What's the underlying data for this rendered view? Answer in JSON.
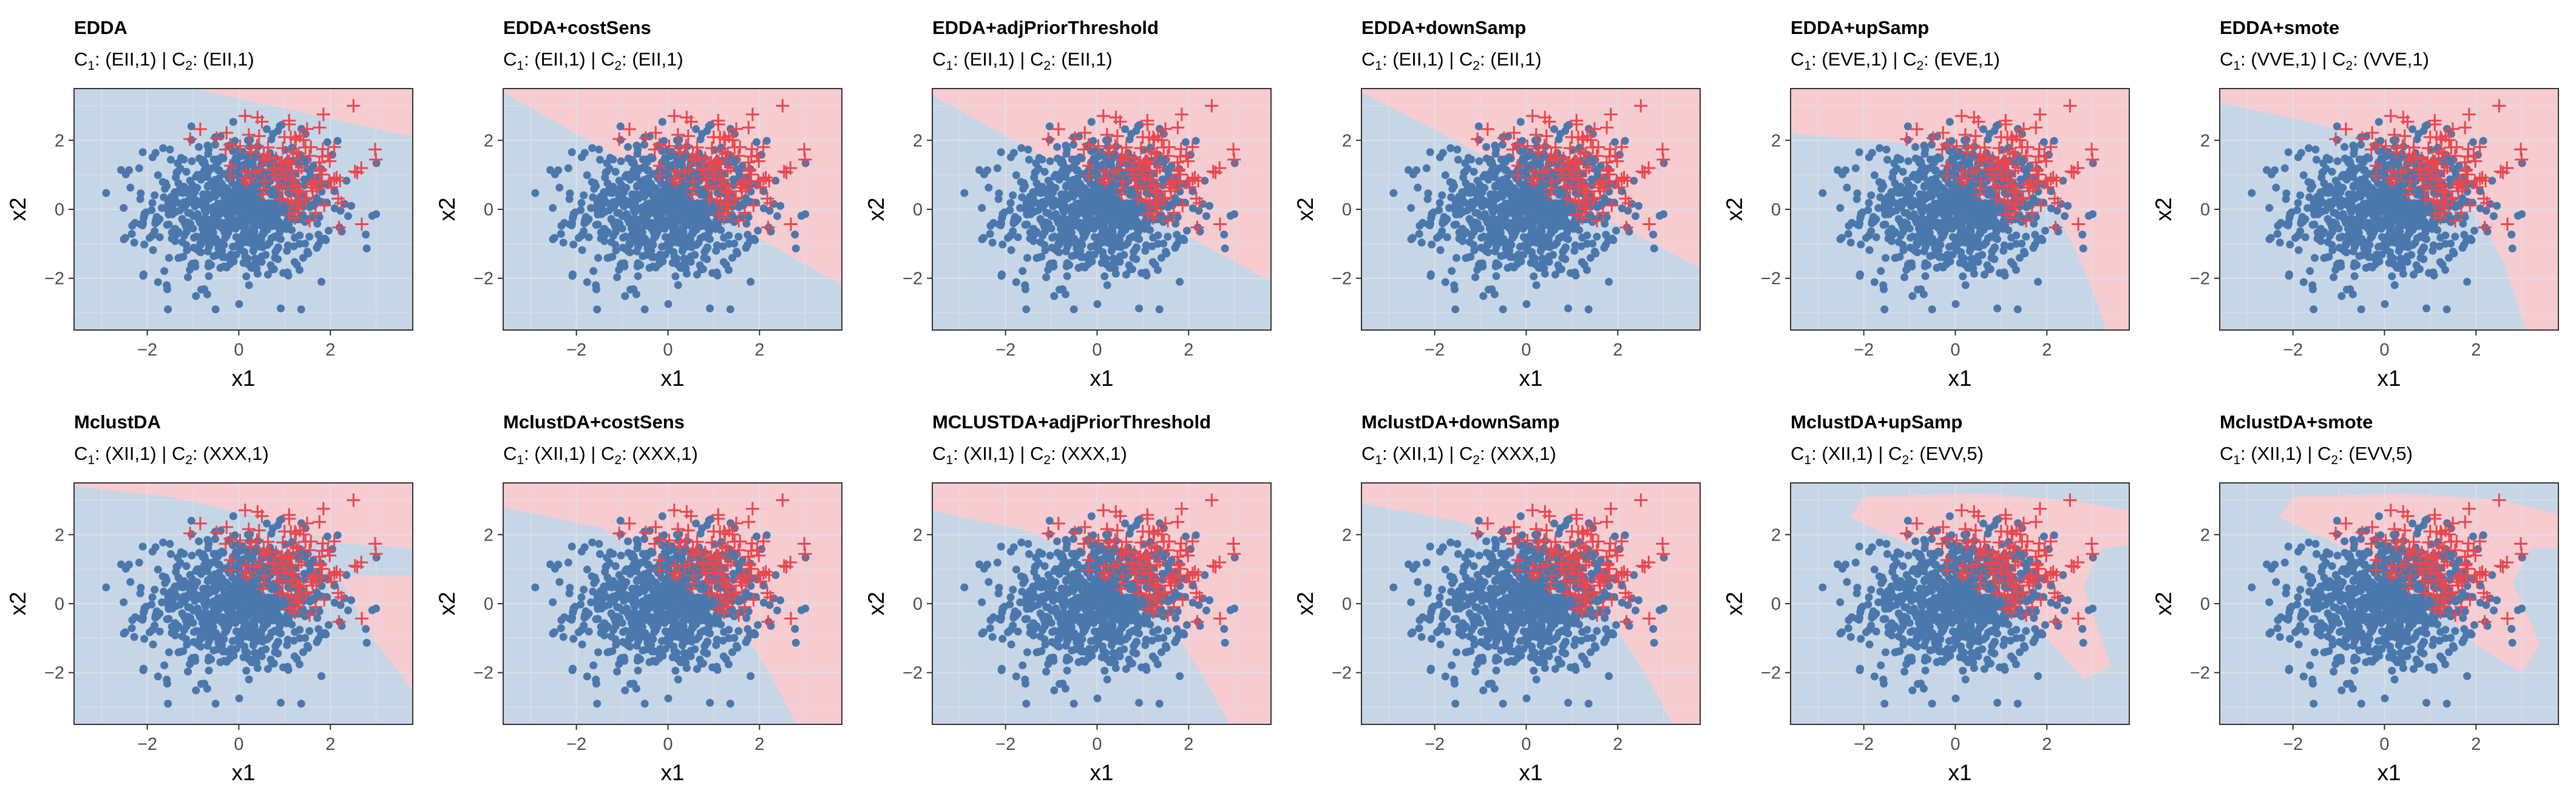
{
  "colors": {
    "majority": "#4a78ad",
    "minority": "#e8474f",
    "region_majority": "#c7d6e6",
    "region_minority": "#f6ccd0",
    "grid": "#dde3ea",
    "border": "#333333"
  },
  "chart_data": [
    {
      "type": "scatter",
      "title": "EDDA",
      "subtitle": {
        "c1_label": "C",
        "c1_sub": "1",
        "c1_value": ": (EII,1) | ",
        "c2_label": "C",
        "c2_sub": "2",
        "c2_value": ": (EII,1)"
      },
      "xlabel": "x1",
      "ylabel": "x2",
      "xlim": [
        -3.6,
        3.8
      ],
      "ylim": [
        -3.5,
        3.5
      ],
      "xticks": [
        -2,
        0,
        2
      ],
      "yticks": [
        -2,
        0,
        2
      ],
      "xtick_labels": [
        "−2",
        "0",
        "2"
      ],
      "ytick_labels": [
        "−2",
        "0",
        "2"
      ],
      "decision_boundary": {
        "kind": "line",
        "x1": -1,
        "y1": 3.5,
        "x2": 3.8,
        "y2": 2.1,
        "minority_side": "above"
      },
      "legend": "none",
      "grid": true
    },
    {
      "type": "scatter",
      "title": "EDDA+costSens",
      "subtitle": {
        "c1_label": "C",
        "c1_sub": "1",
        "c1_value": ": (EII,1) | ",
        "c2_label": "C",
        "c2_sub": "2",
        "c2_value": ": (EII,1)"
      },
      "xlabel": "x1",
      "ylabel": "x2",
      "xlim": [
        -3.6,
        3.8
      ],
      "ylim": [
        -3.5,
        3.5
      ],
      "xticks": [
        -2,
        0,
        2
      ],
      "yticks": [
        -2,
        0,
        2
      ],
      "xtick_labels": [
        "−2",
        "0",
        "2"
      ],
      "ytick_labels": [
        "−2",
        "0",
        "2"
      ],
      "decision_boundary": {
        "kind": "line",
        "x1": -3.6,
        "y1": 3.4,
        "x2": 3.8,
        "y2": -2.2,
        "minority_side": "above"
      },
      "legend": "none",
      "grid": true
    },
    {
      "type": "scatter",
      "title": "EDDA+adjPriorThreshold",
      "subtitle": {
        "c1_label": "C",
        "c1_sub": "1",
        "c1_value": ": (EII,1) | ",
        "c2_label": "C",
        "c2_sub": "2",
        "c2_value": ": (EII,1)"
      },
      "xlabel": "x1",
      "ylabel": "x2",
      "xlim": [
        -3.6,
        3.8
      ],
      "ylim": [
        -3.5,
        3.5
      ],
      "xticks": [
        -2,
        0,
        2
      ],
      "yticks": [
        -2,
        0,
        2
      ],
      "xtick_labels": [
        "−2",
        "0",
        "2"
      ],
      "ytick_labels": [
        "−2",
        "0",
        "2"
      ],
      "decision_boundary": {
        "kind": "line",
        "x1": -3.6,
        "y1": 3.3,
        "x2": 3.8,
        "y2": -2.1,
        "minority_side": "above"
      },
      "legend": "none",
      "grid": true
    },
    {
      "type": "scatter",
      "title": "EDDA+downSamp",
      "subtitle": {
        "c1_label": "C",
        "c1_sub": "1",
        "c1_value": ": (EII,1) | ",
        "c2_label": "C",
        "c2_sub": "2",
        "c2_value": ": (EII,1)"
      },
      "xlabel": "x1",
      "ylabel": "x2",
      "xlim": [
        -3.6,
        3.8
      ],
      "ylim": [
        -3.5,
        3.5
      ],
      "xticks": [
        -2,
        0,
        2
      ],
      "yticks": [
        -2,
        0,
        2
      ],
      "xtick_labels": [
        "−2",
        "0",
        "2"
      ],
      "ytick_labels": [
        "−2",
        "0",
        "2"
      ],
      "decision_boundary": {
        "kind": "line",
        "x1": -3.6,
        "y1": 3.4,
        "x2": 3.8,
        "y2": -1.7,
        "minority_side": "above"
      },
      "legend": "none",
      "grid": true
    },
    {
      "type": "scatter",
      "title": "EDDA+upSamp",
      "subtitle": {
        "c1_label": "C",
        "c1_sub": "1",
        "c1_value": ": (EVE,1) | ",
        "c2_label": "C",
        "c2_sub": "2",
        "c2_value": ": (EVE,1)"
      },
      "xlabel": "x1",
      "ylabel": "x2",
      "xlim": [
        -3.6,
        3.8
      ],
      "ylim": [
        -3.5,
        3.5
      ],
      "xticks": [
        -2,
        0,
        2
      ],
      "yticks": [
        -2,
        0,
        2
      ],
      "xtick_labels": [
        "−2",
        "0",
        "2"
      ],
      "ytick_labels": [
        "−2",
        "0",
        "2"
      ],
      "decision_boundary": {
        "kind": "curve",
        "points": [
          [
            -3.6,
            2.2
          ],
          [
            -1,
            1.9
          ],
          [
            1,
            1.3
          ],
          [
            2.2,
            0
          ],
          [
            2.9,
            -2
          ],
          [
            3.3,
            -3.5
          ]
        ],
        "minority_side": "above"
      },
      "legend": "none",
      "grid": true
    },
    {
      "type": "scatter",
      "title": "EDDA+smote",
      "subtitle": {
        "c1_label": "C",
        "c1_sub": "1",
        "c1_value": ": (VVE,1) | ",
        "c2_label": "C",
        "c2_sub": "2",
        "c2_value": ": (VVE,1)"
      },
      "xlabel": "x1",
      "ylabel": "x2",
      "xlim": [
        -3.6,
        3.8
      ],
      "ylim": [
        -3.5,
        3.5
      ],
      "xticks": [
        -2,
        0,
        2
      ],
      "yticks": [
        -2,
        0,
        2
      ],
      "xtick_labels": [
        "−2",
        "0",
        "2"
      ],
      "ytick_labels": [
        "−2",
        "0",
        "2"
      ],
      "decision_boundary": {
        "kind": "curve",
        "points": [
          [
            -3.6,
            3.1
          ],
          [
            -1.5,
            2.5
          ],
          [
            0.5,
            1.6
          ],
          [
            1.8,
            0.3
          ],
          [
            2.6,
            -1.5
          ],
          [
            3.1,
            -3.5
          ]
        ],
        "minority_side": "above"
      },
      "legend": "none",
      "grid": true
    },
    {
      "type": "scatter",
      "title": "MclustDA",
      "subtitle": {
        "c1_label": "C",
        "c1_sub": "1",
        "c1_value": ": (XII,1) | ",
        "c2_label": "C",
        "c2_sub": "2",
        "c2_value": ": (XXX,1)"
      },
      "xlabel": "x1",
      "ylabel": "x2",
      "xlim": [
        -3.6,
        3.8
      ],
      "ylim": [
        -3.5,
        3.5
      ],
      "xticks": [
        -2,
        0,
        2
      ],
      "yticks": [
        -2,
        0,
        2
      ],
      "xtick_labels": [
        "−2",
        "0",
        "2"
      ],
      "ytick_labels": [
        "−2",
        "0",
        "2"
      ],
      "decision_boundary": {
        "kind": "curve",
        "points": [
          [
            -3.6,
            3.4
          ],
          [
            -1.5,
            3.1
          ],
          [
            0.5,
            2.5
          ],
          [
            1.8,
            1.8
          ],
          [
            3.8,
            1.6
          ]
        ],
        "minority_side": "above",
        "second": {
          "points": [
            [
              2.2,
              0.8
            ],
            [
              2.8,
              -0.8
            ],
            [
              3.8,
              -2.5
            ]
          ],
          "minority_side": "right"
        }
      },
      "legend": "none",
      "grid": true
    },
    {
      "type": "scatter",
      "title": "MclustDA+costSens",
      "subtitle": {
        "c1_label": "C",
        "c1_sub": "1",
        "c1_value": ": (XII,1) | ",
        "c2_label": "C",
        "c2_sub": "2",
        "c2_value": ": (XXX,1)"
      },
      "xlabel": "x1",
      "ylabel": "x2",
      "xlim": [
        -3.6,
        3.8
      ],
      "ylim": [
        -3.5,
        3.5
      ],
      "xticks": [
        -2,
        0,
        2
      ],
      "yticks": [
        -2,
        0,
        2
      ],
      "xtick_labels": [
        "−2",
        "0",
        "2"
      ],
      "ytick_labels": [
        "−2",
        "0",
        "2"
      ],
      "decision_boundary": {
        "kind": "curve",
        "points": [
          [
            -3.6,
            2.8
          ],
          [
            -1.5,
            2.2
          ],
          [
            0.5,
            1.0
          ],
          [
            1.5,
            -0.5
          ],
          [
            2.3,
            -2.2
          ],
          [
            2.8,
            -3.5
          ]
        ],
        "minority_side": "above"
      },
      "legend": "none",
      "grid": true
    },
    {
      "type": "scatter",
      "title": "MCLUSTDA+adjPriorThreshold",
      "subtitle": {
        "c1_label": "C",
        "c1_sub": "1",
        "c1_value": ": (XII,1) | ",
        "c2_label": "C",
        "c2_sub": "2",
        "c2_value": ": (XXX,1)"
      },
      "xlabel": "x1",
      "ylabel": "x2",
      "xlim": [
        -3.6,
        3.8
      ],
      "ylim": [
        -3.5,
        3.5
      ],
      "xticks": [
        -2,
        0,
        2
      ],
      "yticks": [
        -2,
        0,
        2
      ],
      "xtick_labels": [
        "−2",
        "0",
        "2"
      ],
      "ytick_labels": [
        "−2",
        "0",
        "2"
      ],
      "decision_boundary": {
        "kind": "curve",
        "points": [
          [
            -3.6,
            2.7
          ],
          [
            -1.5,
            2.1
          ],
          [
            0.5,
            0.9
          ],
          [
            1.6,
            -0.6
          ],
          [
            2.4,
            -2.3
          ],
          [
            2.9,
            -3.5
          ]
        ],
        "minority_side": "above"
      },
      "legend": "none",
      "grid": true
    },
    {
      "type": "scatter",
      "title": "MclustDA+downSamp",
      "subtitle": {
        "c1_label": "C",
        "c1_sub": "1",
        "c1_value": ": (XII,1) | ",
        "c2_label": "C",
        "c2_sub": "2",
        "c2_value": ": (XXX,1)"
      },
      "xlabel": "x1",
      "ylabel": "x2",
      "xlim": [
        -3.6,
        3.8
      ],
      "ylim": [
        -3.5,
        3.5
      ],
      "xticks": [
        -2,
        0,
        2
      ],
      "yticks": [
        -2,
        0,
        2
      ],
      "xtick_labels": [
        "−2",
        "0",
        "2"
      ],
      "ytick_labels": [
        "−2",
        "0",
        "2"
      ],
      "decision_boundary": {
        "kind": "curve",
        "points": [
          [
            -3.6,
            2.9
          ],
          [
            -1.5,
            2.4
          ],
          [
            0.5,
            1.3
          ],
          [
            1.7,
            -0.2
          ],
          [
            2.6,
            -2.0
          ],
          [
            3.2,
            -3.5
          ]
        ],
        "minority_side": "above"
      },
      "legend": "none",
      "grid": true
    },
    {
      "type": "scatter",
      "title": "MclustDA+upSamp",
      "subtitle": {
        "c1_label": "C",
        "c1_sub": "1",
        "c1_value": ": (XII,1) | ",
        "c2_label": "C",
        "c2_sub": "2",
        "c2_value": ": (EVV,5)"
      },
      "xlabel": "x1",
      "ylabel": "x2",
      "xlim": [
        -3.6,
        3.8
      ],
      "ylim": [
        -3.5,
        3.5
      ],
      "xticks": [
        -2,
        0,
        2
      ],
      "yticks": [
        -2,
        0,
        2
      ],
      "xtick_labels": [
        "−2",
        "0",
        "2"
      ],
      "ytick_labels": [
        "−2",
        "0",
        "2"
      ],
      "decision_boundary": {
        "kind": "region",
        "points": [
          [
            -2,
            3.1
          ],
          [
            0.5,
            3.2
          ],
          [
            2.5,
            3.0
          ],
          [
            3.8,
            2.7
          ],
          [
            3.8,
            1.7
          ],
          [
            3.2,
            1.6
          ],
          [
            2.8,
            0.5
          ],
          [
            3.4,
            -1.8
          ],
          [
            2.8,
            -2.2
          ],
          [
            2.0,
            -1.0
          ],
          [
            1.0,
            0.3
          ],
          [
            -0.2,
            1.3
          ],
          [
            -1.5,
            2.0
          ],
          [
            -2.3,
            2.5
          ]
        ]
      },
      "legend": "none",
      "grid": true
    },
    {
      "type": "scatter",
      "title": "MclustDA+smote",
      "subtitle": {
        "c1_label": "C",
        "c1_sub": "1",
        "c1_value": ": (XII,1) | ",
        "c2_label": "C",
        "c2_sub": "2",
        "c2_value": ": (EVV,5)"
      },
      "xlabel": "x1",
      "ylabel": "x2",
      "xlim": [
        -3.6,
        3.8
      ],
      "ylim": [
        -3.5,
        3.5
      ],
      "xticks": [
        -2,
        0,
        2
      ],
      "yticks": [
        -2,
        0,
        2
      ],
      "xtick_labels": [
        "−2",
        "0",
        "2"
      ],
      "ytick_labels": [
        "−2",
        "0",
        "2"
      ],
      "decision_boundary": {
        "kind": "region",
        "points": [
          [
            -2,
            3.1
          ],
          [
            0.5,
            3.2
          ],
          [
            2.5,
            3.0
          ],
          [
            3.8,
            2.6
          ],
          [
            3.8,
            1.6
          ],
          [
            3.2,
            1.6
          ],
          [
            2.8,
            0.6
          ],
          [
            3.4,
            -1.2
          ],
          [
            3.0,
            -2.0
          ],
          [
            2.0,
            -1.2
          ],
          [
            1.0,
            0.2
          ],
          [
            -0.2,
            1.2
          ],
          [
            -1.5,
            2.0
          ],
          [
            -2.3,
            2.5
          ]
        ]
      },
      "legend": "none",
      "grid": true
    }
  ]
}
